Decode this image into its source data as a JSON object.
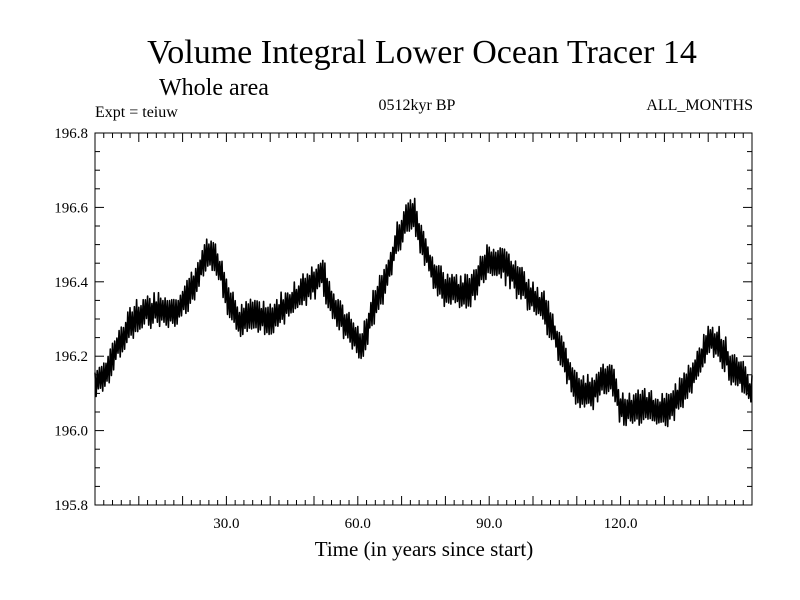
{
  "chart_data": {
    "type": "line",
    "title": "Volume Integral Lower Ocean Tracer 14",
    "subtitle": "Whole area",
    "annotations": {
      "left": "Expt = teiuw",
      "center": "0512kyr BP",
      "right": "ALL_MONTHS"
    },
    "xlabel": "Time (in years since start)",
    "ylabel": "",
    "xlim": [
      0,
      150
    ],
    "ylim": [
      195.8,
      196.8
    ],
    "x_ticks": [
      30,
      60,
      90,
      120
    ],
    "x_tick_labels": [
      "30.0",
      "60.0",
      "90.0",
      "120.0"
    ],
    "y_ticks": [
      195.8,
      196.0,
      196.2,
      196.4,
      196.6,
      196.8
    ],
    "y_tick_labels": [
      "195.8",
      "196.0",
      "196.2",
      "196.4",
      "196.6",
      "196.8"
    ],
    "grid": false,
    "series": [
      {
        "name": "Volume Integral Lower Ocean Tracer 14",
        "color": "#000000",
        "oscillation_amplitude": 0.045,
        "samples_per_year": 2,
        "trend": {
          "x": [
            0,
            2,
            5,
            8,
            12,
            15,
            18,
            20,
            23,
            25,
            27,
            29,
            31,
            33,
            36,
            40,
            43,
            47,
            50,
            52,
            54,
            56,
            59,
            61,
            63,
            66,
            69,
            71,
            72,
            73,
            75,
            77,
            80,
            83,
            86,
            88,
            90,
            93,
            97,
            100,
            103,
            106,
            108,
            110,
            113,
            116,
            118,
            120,
            123,
            126,
            129,
            131,
            134,
            137,
            140,
            142,
            145,
            148,
            150
          ],
          "y": [
            196.12,
            196.15,
            196.22,
            196.29,
            196.32,
            196.33,
            196.31,
            196.34,
            196.4,
            196.47,
            196.47,
            196.42,
            196.33,
            196.29,
            196.31,
            196.3,
            196.33,
            196.37,
            196.4,
            196.42,
            196.34,
            196.31,
            196.26,
            196.22,
            196.31,
            196.4,
            196.51,
            196.56,
            196.58,
            196.57,
            196.5,
            196.43,
            196.38,
            196.37,
            196.38,
            196.42,
            196.46,
            196.45,
            196.4,
            196.35,
            196.32,
            196.23,
            196.16,
            196.11,
            196.1,
            196.13,
            196.15,
            196.06,
            196.06,
            196.07,
            196.05,
            196.06,
            196.1,
            196.16,
            196.24,
            196.24,
            196.18,
            196.14,
            196.1
          ]
        }
      }
    ]
  }
}
